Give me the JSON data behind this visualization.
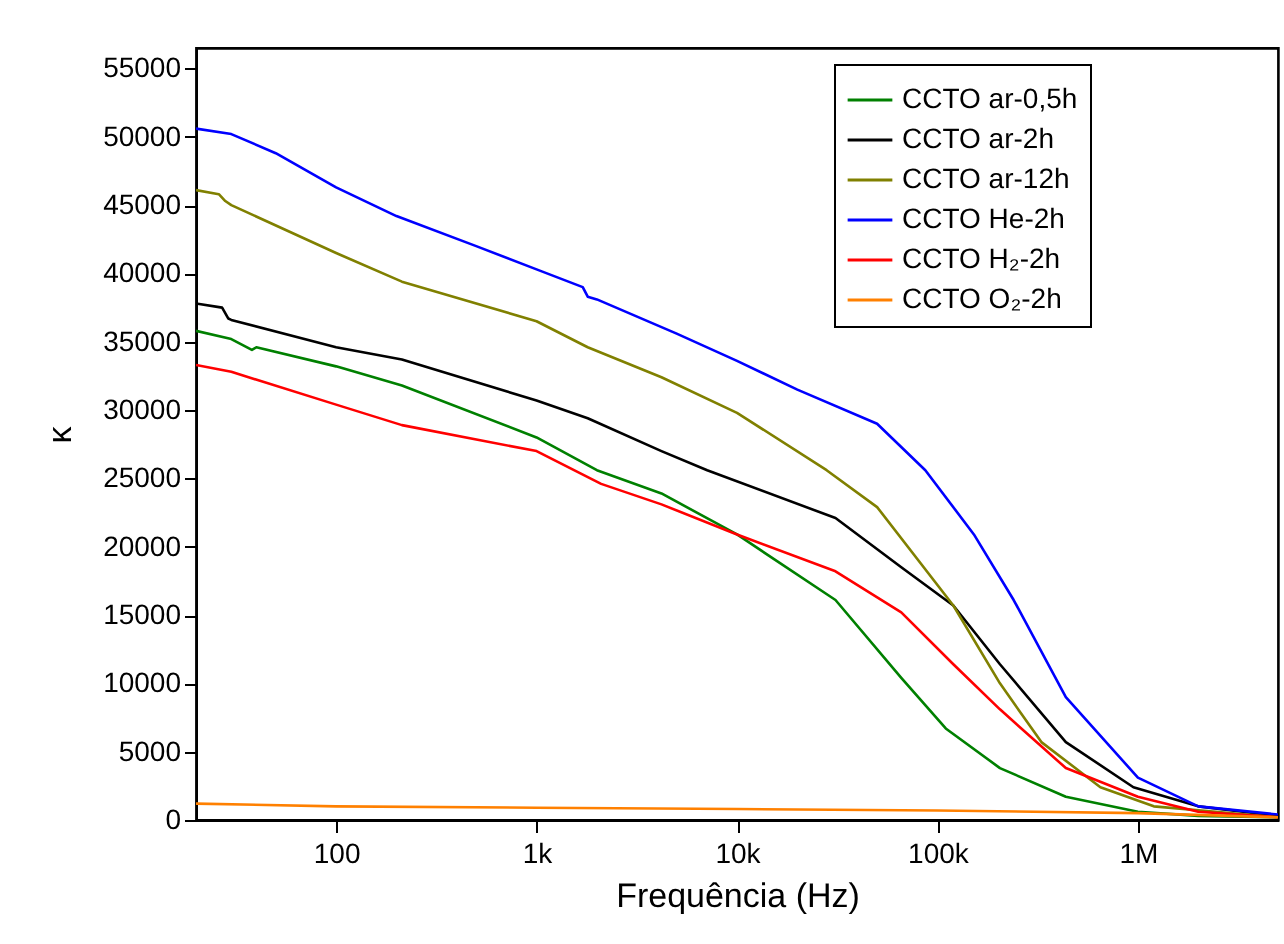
{
  "chart_data": {
    "type": "line",
    "xlabel": "Frequência (Hz)",
    "ylabel": "κ",
    "log": "x",
    "grid": false,
    "legend": "top right",
    "line_style": "solid",
    "marker": "none",
    "xlim": [
      20,
      5000000
    ],
    "ylim": [
      0,
      56500
    ],
    "xticks": [
      {
        "value": 100,
        "label": "100"
      },
      {
        "value": 1000,
        "label": "1k"
      },
      {
        "value": 10000,
        "label": "10k"
      },
      {
        "value": 100000,
        "label": "100k"
      },
      {
        "value": 1000000,
        "label": "1M"
      }
    ],
    "yticks": [
      0,
      5000,
      10000,
      15000,
      20000,
      25000,
      30000,
      35000,
      40000,
      45000,
      50000,
      55000
    ],
    "series": [
      {
        "name": "CCTO ar-0,5h",
        "color": "#008000",
        "x": [
          20,
          30,
          38,
          40,
          100,
          213,
          1000,
          2000,
          4200,
          10000,
          31000,
          66000,
          110000,
          205000,
          437000,
          1000000,
          2000000,
          5000000
        ],
        "values": [
          35800,
          35200,
          34400,
          34600,
          33200,
          31800,
          28000,
          25600,
          23900,
          20900,
          16100,
          10400,
          6700,
          3800,
          1700,
          600,
          300,
          200
        ]
      },
      {
        "name": "CCTO ar-2h",
        "color": "#000000",
        "x": [
          20,
          27,
          29,
          30,
          100,
          213,
          1000,
          1800,
          4200,
          7100,
          31000,
          66000,
          120000,
          205000,
          437000,
          950000,
          2000000,
          5000000
        ],
        "values": [
          37800,
          37500,
          36700,
          36600,
          34600,
          33700,
          30700,
          29400,
          27000,
          25600,
          22100,
          18500,
          15700,
          11400,
          5700,
          2400,
          1000,
          300
        ]
      },
      {
        "name": "CCTO ar-12h",
        "color": "#808000",
        "x": [
          20,
          26,
          28,
          30,
          100,
          213,
          1000,
          1800,
          4200,
          10000,
          28000,
          50000,
          120000,
          205000,
          330000,
          650000,
          1200000,
          5000000
        ],
        "values": [
          46100,
          45800,
          45300,
          45000,
          41500,
          39400,
          36500,
          34600,
          32400,
          29800,
          25600,
          22900,
          15700,
          10000,
          5700,
          2400,
          1000,
          200
        ]
      },
      {
        "name": "CCTO He-2h",
        "color": "#0000ff",
        "x": [
          20,
          30,
          50,
          100,
          200,
          500,
          1000,
          1700,
          1800,
          2000,
          5000,
          10000,
          20000,
          50000,
          87000,
          152000,
          240000,
          437000,
          1000000,
          2000000,
          5000000
        ],
        "values": [
          50600,
          50200,
          48800,
          46300,
          44200,
          42000,
          40300,
          39000,
          38300,
          38100,
          35600,
          33600,
          31500,
          29000,
          25600,
          20900,
          16100,
          9000,
          3100,
          1000,
          400
        ]
      },
      {
        "name": "CCTO H₂-2h",
        "color": "#ff0000",
        "x": [
          20,
          30,
          100,
          213,
          1000,
          2100,
          4200,
          10000,
          31000,
          66000,
          120000,
          205000,
          437000,
          1000000,
          2000000,
          5000000
        ],
        "values": [
          33300,
          32800,
          30400,
          28900,
          27000,
          24600,
          23100,
          20900,
          18200,
          15200,
          11400,
          8100,
          3800,
          1700,
          600,
          200
        ]
      },
      {
        "name": "CCTO O₂-2h",
        "color": "#ff8000",
        "x": [
          20,
          100,
          1000,
          10000,
          100000,
          1000000,
          5000000
        ],
        "values": [
          1200,
          1000,
          900,
          800,
          700,
          500,
          200
        ]
      }
    ]
  }
}
